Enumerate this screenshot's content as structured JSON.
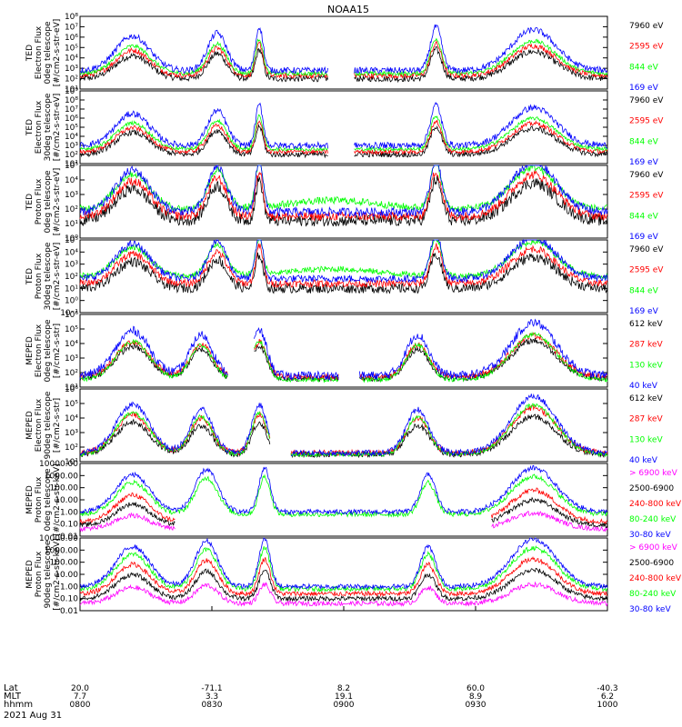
{
  "title": "NOAA15",
  "date_label": "2021 Aug 31",
  "footer_row_labels": [
    "Lat",
    "MLT",
    "hhmm"
  ],
  "footer_columns": [
    {
      "lat": "20.0",
      "mlt": "7.7",
      "time": "0800"
    },
    {
      "lat": "-71.1",
      "mlt": "3.3",
      "time": "0830"
    },
    {
      "lat": "8.2",
      "mlt": "19.1",
      "time": "0900"
    },
    {
      "lat": "60.0",
      "mlt": "8.9",
      "time": "0930"
    },
    {
      "lat": "-40.3",
      "mlt": "6.2",
      "time": "1000"
    }
  ],
  "colors": {
    "blue": "#0000ff",
    "red": "#ff0000",
    "green": "#00ff00",
    "black": "#000000",
    "magenta": "#ff00ff"
  },
  "chart_data": [
    {
      "type": "line",
      "ylabel": [
        "TED",
        "Electron Flux",
        "0deg telescope",
        "[#/cm2-s-str-eV]"
      ],
      "yscale": "log",
      "ylim": [
        10,
        100000000
      ],
      "yticks": [
        "10¹",
        "10²",
        "10³",
        "10⁴",
        "10⁵",
        "10⁶",
        "10⁷",
        "10⁸"
      ],
      "series": [
        {
          "name": "7960 eV",
          "color": "#000000",
          "base": 2.0,
          "scale": 1.0,
          "noise": 0.3,
          "gaps": [
            [
              0.47,
              0.52
            ]
          ]
        },
        {
          "name": "2595 eV",
          "color": "#ff0000",
          "base": 2.3,
          "scale": 1.1,
          "noise": 0.25,
          "gaps": [
            [
              0.47,
              0.52
            ]
          ]
        },
        {
          "name": "844 eV",
          "color": "#00ff00",
          "base": 2.5,
          "scale": 1.2,
          "noise": 0.2,
          "gaps": [
            [
              0.47,
              0.52
            ]
          ]
        },
        {
          "name": "169 eV",
          "color": "#0000ff",
          "base": 2.8,
          "scale": 1.5,
          "noise": 0.3,
          "gaps": [
            [
              0.47,
              0.52
            ]
          ]
        }
      ]
    },
    {
      "type": "line",
      "ylabel": [
        "TED",
        "Electron Flux",
        "30deg telescope",
        "[#/cm2-s-str-eV]"
      ],
      "yscale": "log",
      "ylim": [
        10,
        1000000000
      ],
      "yticks": [
        "10¹",
        "10²",
        "10³",
        "10⁴",
        "10⁵",
        "10⁶",
        "10⁷",
        "10⁸",
        "10⁹"
      ],
      "series": [
        {
          "name": "7960 eV",
          "color": "#000000",
          "base": 2.0,
          "scale": 1.1,
          "noise": 0.3,
          "gaps": [
            [
              0.47,
              0.52
            ]
          ]
        },
        {
          "name": "2595 eV",
          "color": "#ff0000",
          "base": 2.3,
          "scale": 1.2,
          "noise": 0.25,
          "gaps": [
            [
              0.47,
              0.52
            ]
          ]
        },
        {
          "name": "844 eV",
          "color": "#00ff00",
          "base": 2.6,
          "scale": 1.3,
          "noise": 0.2,
          "gaps": [
            [
              0.47,
              0.52
            ]
          ]
        },
        {
          "name": "169 eV",
          "color": "#0000ff",
          "base": 3.0,
          "scale": 1.6,
          "noise": 0.35,
          "gaps": [
            [
              0.47,
              0.52
            ]
          ]
        }
      ]
    },
    {
      "type": "line",
      "ylabel": [
        "TED",
        "Proton Flux",
        "0deg telescope",
        "[#/cm2-s-str-eV]"
      ],
      "yscale": "log",
      "ylim": [
        1,
        100000
      ],
      "yticks": [
        "10⁰",
        "10¹",
        "10²",
        "10³",
        "10⁴",
        "10⁵"
      ],
      "series": [
        {
          "name": "7960 eV",
          "color": "#000000",
          "base": 1.2,
          "scale": 1.0,
          "noise": 0.4,
          "gaps": []
        },
        {
          "name": "2595 eV",
          "color": "#ff0000",
          "base": 1.5,
          "scale": 1.1,
          "noise": 0.3,
          "gaps": []
        },
        {
          "name": "844 eV",
          "color": "#00ff00",
          "base": 2.0,
          "scale": 1.1,
          "noise": 0.25,
          "gaps": []
        },
        {
          "name": "169 eV",
          "color": "#0000ff",
          "base": 1.8,
          "scale": 1.3,
          "noise": 0.3,
          "gaps": []
        }
      ]
    },
    {
      "type": "line",
      "ylabel": [
        "TED",
        "Proton Flux",
        "30deg telescope",
        "[#/cm2-s-str-eV]"
      ],
      "yscale": "log",
      "ylim": [
        0.1,
        100000
      ],
      "yticks": [
        "10⁻¹",
        "10⁰",
        "10¹",
        "10²",
        "10³",
        "10⁴",
        "10⁵"
      ],
      "series": [
        {
          "name": "7960 eV",
          "color": "#000000",
          "base": 1.0,
          "scale": 1.0,
          "noise": 0.4,
          "gaps": []
        },
        {
          "name": "2595 eV",
          "color": "#ff0000",
          "base": 1.4,
          "scale": 1.1,
          "noise": 0.3,
          "gaps": []
        },
        {
          "name": "844 eV",
          "color": "#00ff00",
          "base": 2.0,
          "scale": 1.1,
          "noise": 0.25,
          "gaps": []
        },
        {
          "name": "169 eV",
          "color": "#0000ff",
          "base": 1.8,
          "scale": 1.3,
          "noise": 0.3,
          "gaps": []
        }
      ]
    },
    {
      "type": "line",
      "ylabel": [
        "MEPED",
        "Electron Flux",
        "0deg telescope",
        "[#/cm2-s-str]"
      ],
      "yscale": "log",
      "ylim": [
        10,
        1000000
      ],
      "yticks": [
        "10¹",
        "10²",
        "10³",
        "10⁴",
        "10⁵",
        "10⁶"
      ],
      "series": [
        {
          "name": "612 keV",
          "color": "#000000",
          "base": 1.6,
          "scale": 1.0,
          "noise": 0.2,
          "gaps": [
            [
              0.28,
              0.33
            ],
            [
              0.49,
              0.53
            ]
          ]
        },
        {
          "name": "287 keV",
          "color": "#ff0000",
          "base": 1.7,
          "scale": 1.1,
          "noise": 0.2,
          "gaps": [
            [
              0.28,
              0.33
            ],
            [
              0.49,
              0.53
            ]
          ]
        },
        {
          "name": "130 keV",
          "color": "#00ff00",
          "base": 1.5,
          "scale": 1.2,
          "noise": 0.15,
          "gaps": [
            [
              0.28,
              0.33
            ],
            [
              0.49,
              0.53
            ]
          ]
        },
        {
          "name": "40 keV",
          "color": "#0000ff",
          "base": 1.8,
          "scale": 1.4,
          "noise": 0.3,
          "gaps": [
            [
              0.28,
              0.33
            ],
            [
              0.49,
              0.53
            ]
          ]
        }
      ]
    },
    {
      "type": "line",
      "ylabel": [
        "MEPED",
        "Electron Flux",
        "90deg telescope",
        "[#/cm2-s-str]"
      ],
      "yscale": "log",
      "ylim": [
        10,
        1000000
      ],
      "yticks": [
        "10¹",
        "10²",
        "10³",
        "10⁴",
        "10⁵",
        "10⁶"
      ],
      "series": [
        {
          "name": "612 keV",
          "color": "#000000",
          "base": 1.5,
          "scale": 1.0,
          "noise": 0.2,
          "gaps": [
            [
              0.36,
              0.4
            ]
          ]
        },
        {
          "name": "287 keV",
          "color": "#ff0000",
          "base": 1.6,
          "scale": 1.2,
          "noise": 0.2,
          "gaps": [
            [
              0.36,
              0.4
            ]
          ]
        },
        {
          "name": "130 keV",
          "color": "#00ff00",
          "base": 1.5,
          "scale": 1.3,
          "noise": 0.15,
          "gaps": [
            [
              0.36,
              0.4
            ]
          ]
        },
        {
          "name": "40 keV",
          "color": "#0000ff",
          "base": 1.6,
          "scale": 1.5,
          "noise": 0.2,
          "gaps": [
            [
              0.36,
              0.4
            ]
          ]
        }
      ]
    },
    {
      "type": "line",
      "ylabel": [
        "MEPED",
        "Proton Flux",
        "0deg telescope",
        "[#/cm2-s-str-keV]"
      ],
      "yscale": "log",
      "ylim": [
        0.01,
        10000
      ],
      "yticks": [
        "0.01",
        "0.10",
        "1.00",
        "10.00",
        "100.00",
        "1000.00",
        "10000.00"
      ],
      "series": [
        {
          "name": "> 6900 keV",
          "color": "#ff00ff",
          "base": -1.4,
          "scale": 0.5,
          "noise": 0.2,
          "gaps": [
            [
              0.18,
              0.78
            ]
          ]
        },
        {
          "name": "2500-6900",
          "color": "#000000",
          "base": -1.1,
          "scale": 0.8,
          "noise": 0.2,
          "gaps": [
            [
              0.18,
              0.78
            ]
          ]
        },
        {
          "name": "240-800 keV",
          "color": "#ff0000",
          "base": -0.8,
          "scale": 1.0,
          "noise": 0.2,
          "gaps": [
            [
              0.18,
              0.78
            ]
          ]
        },
        {
          "name": "80-240 keV",
          "color": "#00ff00",
          "base": -0.2,
          "scale": 1.2,
          "noise": 0.2,
          "gaps": []
        },
        {
          "name": "30-80 keV",
          "color": "#0000ff",
          "base": 0.0,
          "scale": 1.4,
          "noise": 0.2,
          "gaps": []
        }
      ]
    },
    {
      "type": "line",
      "ylabel": [
        "MEPED",
        "Proton Flux",
        "90deg telescope",
        "[#/cm2-s-str-keV]"
      ],
      "yscale": "log",
      "ylim": [
        0.01,
        10000
      ],
      "yticks": [
        "0.01",
        "0.10",
        "1.00",
        "10.00",
        "100.00",
        "1000.00",
        "10000.00"
      ],
      "series": [
        {
          "name": "> 6900 keV",
          "color": "#ff00ff",
          "base": -1.4,
          "scale": 0.6,
          "noise": 0.2,
          "gaps": []
        },
        {
          "name": "2500-6900",
          "color": "#000000",
          "base": -1.0,
          "scale": 0.9,
          "noise": 0.2,
          "gaps": []
        },
        {
          "name": "240-800 keV",
          "color": "#ff0000",
          "base": -0.6,
          "scale": 1.1,
          "noise": 0.2,
          "gaps": []
        },
        {
          "name": "80-240 keV",
          "color": "#00ff00",
          "base": -0.2,
          "scale": 1.3,
          "noise": 0.2,
          "gaps": []
        },
        {
          "name": "30-80 keV",
          "color": "#0000ff",
          "base": 0.0,
          "scale": 1.5,
          "noise": 0.2,
          "gaps": []
        }
      ]
    }
  ]
}
